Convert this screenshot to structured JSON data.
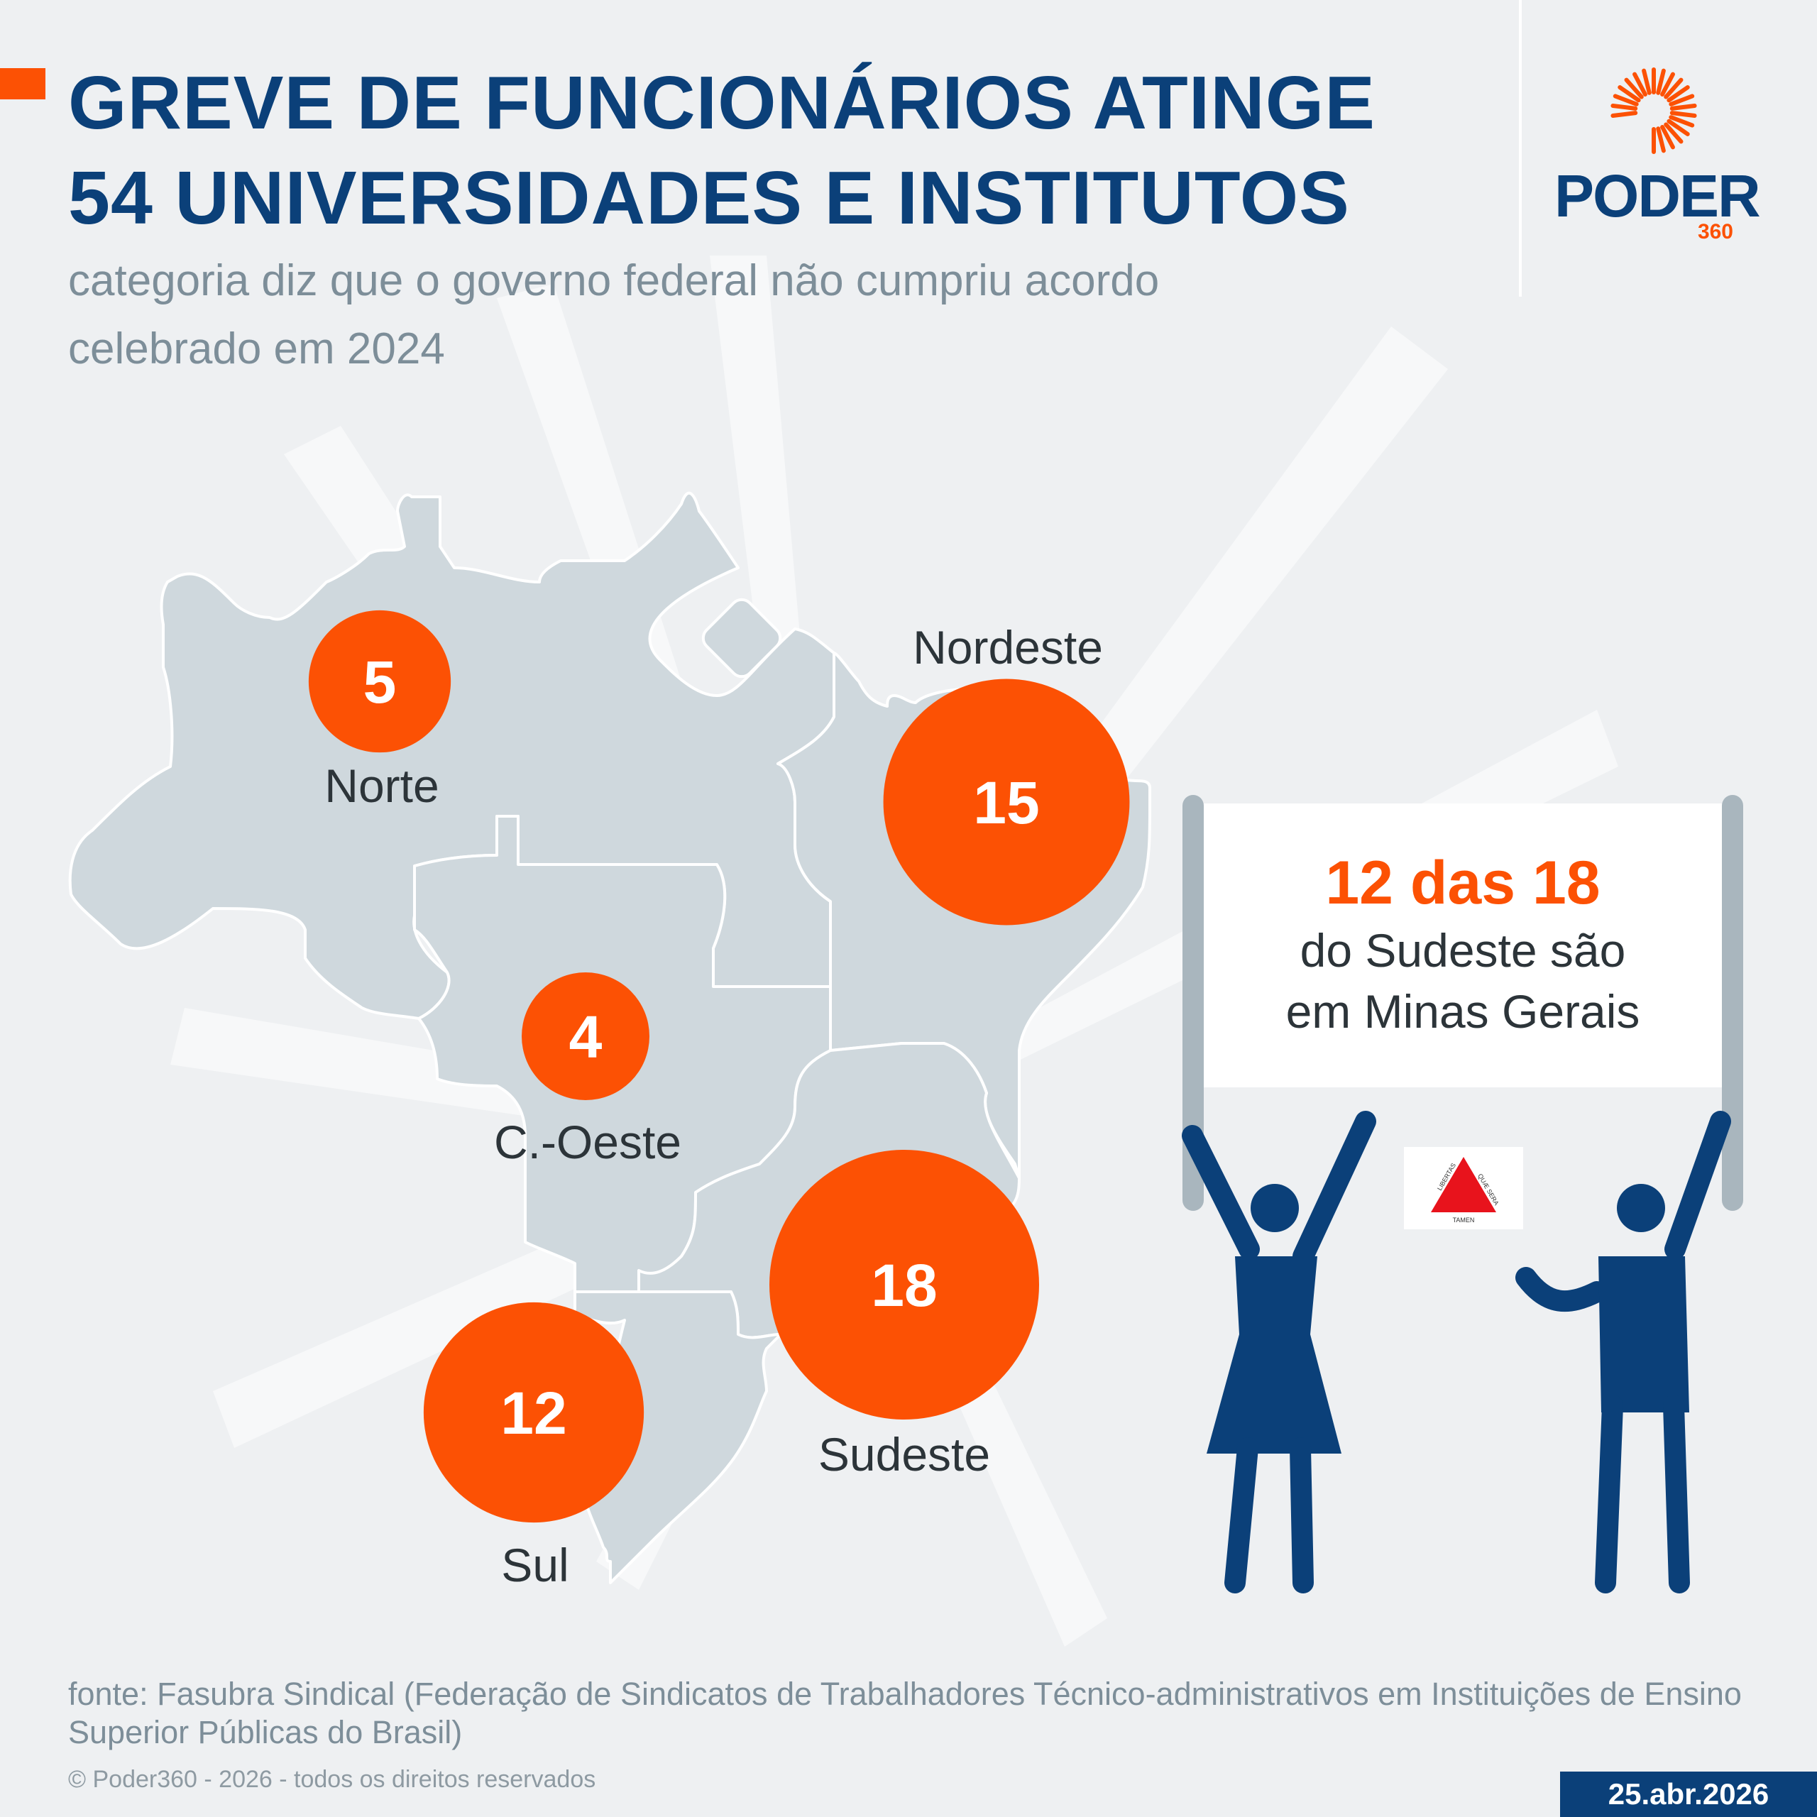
{
  "header": {
    "title_line1": "GREVE DE FUNCIONÁRIOS ATINGE",
    "title_line2": "54 UNIVERSIDADES E INSTITUTOS",
    "subtitle_line1": "categoria diz que o governo federal não cumpriu acordo",
    "subtitle_line2": "celebrado em 2024"
  },
  "logo": {
    "word": "PODER",
    "number": "360",
    "icon": "sunburst-icon"
  },
  "map": {
    "regions": [
      {
        "id": "norte",
        "name": "Norte",
        "value": "5"
      },
      {
        "id": "nordeste",
        "name": "Nordeste",
        "value": "15"
      },
      {
        "id": "centro-oeste",
        "name": "C.-Oeste",
        "value": "4"
      },
      {
        "id": "sudeste",
        "name": "Sudeste",
        "value": "18"
      },
      {
        "id": "sul",
        "name": "Sul",
        "value": "12"
      }
    ],
    "bubble_color": "#fc5104",
    "land_color": "#cfd8dd"
  },
  "sign": {
    "highlight": "12 das 18",
    "line1": "do Sudeste são",
    "line2": "em Minas Gerais"
  },
  "flag": {
    "icon": "minas-gerais-flag-icon",
    "text_left": "LIBERTAS",
    "text_right": "QUÆ SERA",
    "text_bottom": "TAMEN"
  },
  "footer": {
    "source": "fonte: Fasubra Sindical (Federação de Sindicatos de Trabalhadores Técnico-administrativos em Instituições de Ensino Superior Públicas do Brasil)",
    "copyright": "© Poder360 - 2026 - todos os direitos reservados",
    "date": "25.abr.2026"
  },
  "colors": {
    "title": "#0b4079",
    "accent": "#fc5104",
    "background": "#eef0f2",
    "text_muted": "#7d8e99"
  }
}
